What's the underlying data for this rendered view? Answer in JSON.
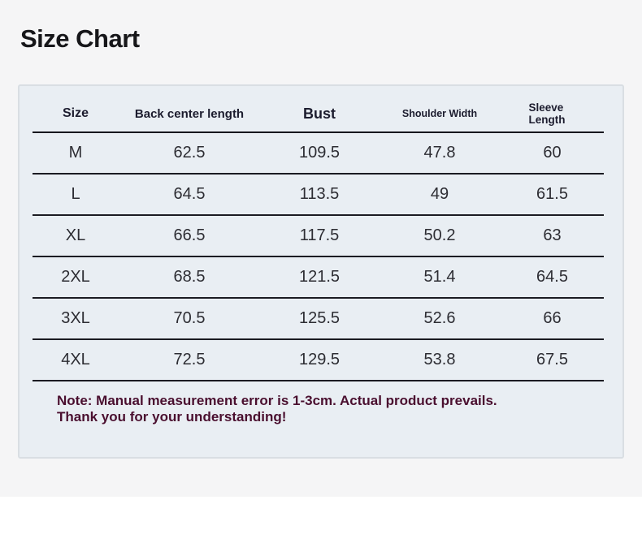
{
  "page": {
    "title": "Size Chart"
  },
  "chart_data": {
    "type": "table",
    "title": "Size Chart",
    "columns": [
      "Size",
      "Back center length",
      "Bust",
      "Shoulder Width",
      "Sleeve Length"
    ],
    "rows": [
      [
        "M",
        "62.5",
        "109.5",
        "47.8",
        "60"
      ],
      [
        "L",
        "64.5",
        "113.5",
        "49",
        "61.5"
      ],
      [
        "XL",
        "66.5",
        "117.5",
        "50.2",
        "63"
      ],
      [
        "2XL",
        "68.5",
        "121.5",
        "51.4",
        "64.5"
      ],
      [
        "3XL",
        "70.5",
        "125.5",
        "52.6",
        "66"
      ],
      [
        "4XL",
        "72.5",
        "129.5",
        "53.8",
        "67.5"
      ]
    ]
  },
  "note": {
    "line1": "Note: Manual measurement error is 1-3cm. Actual product prevails.",
    "line2": "Thank you for your understanding!"
  },
  "colors": {
    "page_background": "#f5f5f6",
    "panel_background": "#e9eef3",
    "panel_border": "#d9dee3",
    "table_line": "#1b1b22",
    "header_text": "#1c1c2e",
    "cell_text": "#2d2d33",
    "note_text": "#4a0f2f",
    "title_text": "#17171a"
  }
}
